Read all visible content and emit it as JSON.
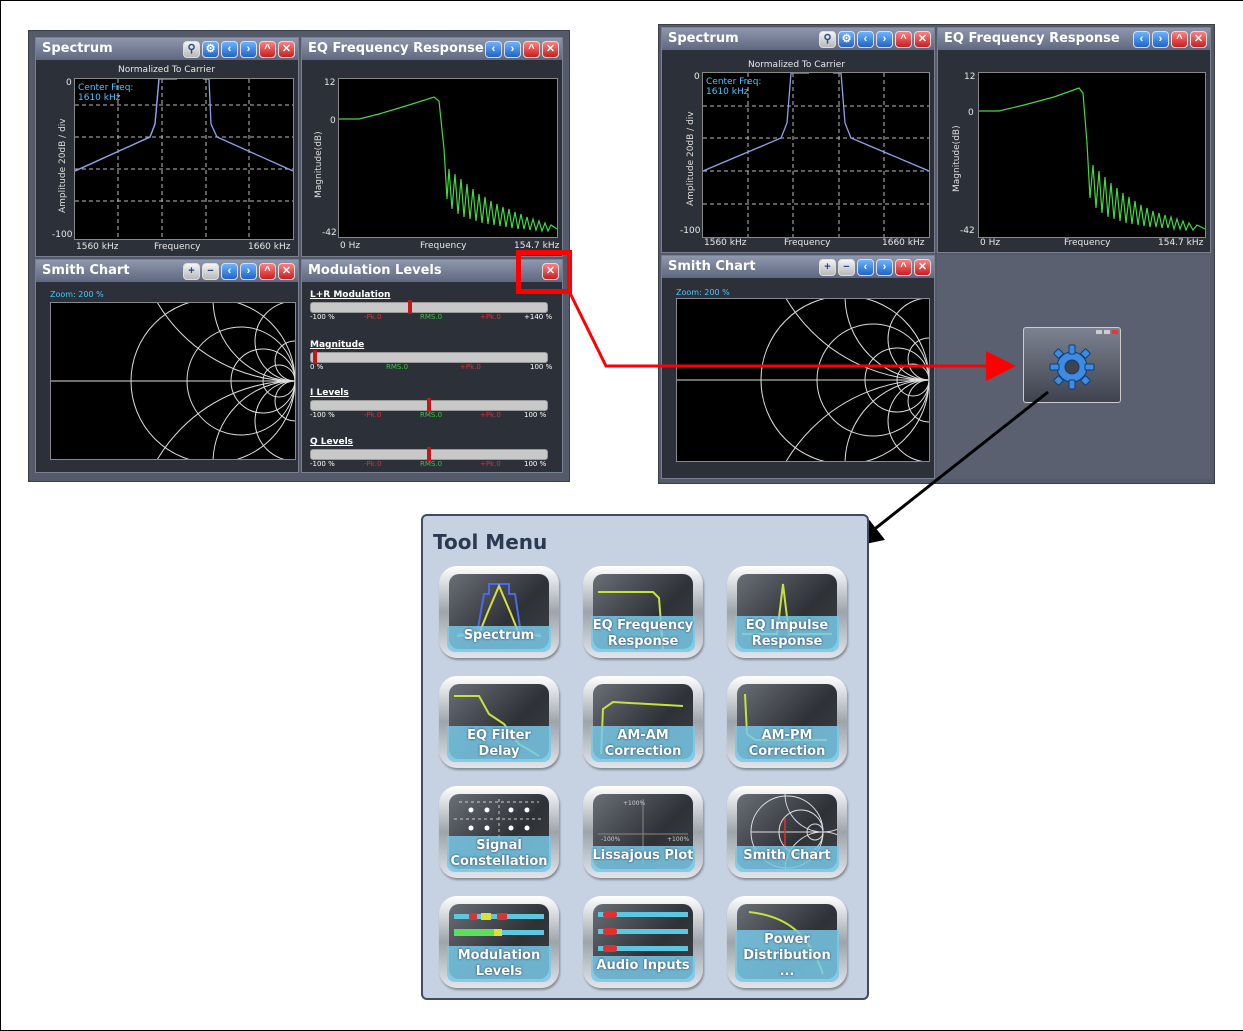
{
  "left_dashboard": {
    "spectrum": {
      "title": "Spectrum",
      "subtitle": "Normalized To Carrier",
      "center_freq_label": "Center Freq:",
      "center_freq_value": "1610 kHz",
      "y_top": "0",
      "y_bottom": "-100",
      "y_label": "Amplitude 20dB / div",
      "x_left": "1560 kHz",
      "x_mid": "Frequency",
      "x_right": "1660 kHz"
    },
    "eq": {
      "title": "EQ Frequency Response",
      "y_top": "12",
      "y_mid": "0",
      "y_bottom": "-42",
      "y_label": "Magnitude(dB)",
      "x_left": "0 Hz",
      "x_mid": "Frequency",
      "x_right": "154.7 kHz"
    },
    "smith": {
      "title": "Smith Chart",
      "zoom": "Zoom: 200 %"
    },
    "modulation": {
      "title": "Modulation Levels",
      "bars": [
        {
          "label": "L+R Modulation",
          "left": "-100 %",
          "mid1": "-Pk.0",
          "mid2": "RMS.0",
          "mid3": "+Pk.0",
          "right": "+140 %",
          "level": 0.42
        },
        {
          "label": "Magnitude",
          "left": "0 %",
          "mid1": "RMS.0",
          "mid2": "+Pk.0",
          "right": "100 %",
          "level": 0.01
        },
        {
          "label": "I Levels",
          "left": "-100 %",
          "mid1": "-Pk.0",
          "mid2": "RMS.0",
          "mid3": "+Pk.0",
          "right": "100 %",
          "level": 0.5
        },
        {
          "label": "Q Levels",
          "left": "-100 %",
          "mid1": "-Pk.0",
          "mid2": "RMS.0",
          "mid3": "+Pk.0",
          "right": "100 %",
          "level": 0.5
        }
      ]
    }
  },
  "right_dashboard": {
    "spectrum": {
      "title": "Spectrum",
      "subtitle": "Normalized To Carrier",
      "center_freq_label": "Center Freq:",
      "center_freq_value": "1610 kHz",
      "y_top": "0",
      "y_bottom": "-100",
      "y_label": "Amplitude 20dB / div",
      "x_left": "1560 kHz",
      "x_mid": "Frequency",
      "x_right": "1660 kHz"
    },
    "eq": {
      "title": "EQ Frequency Response",
      "y_top": "12",
      "y_mid": "0",
      "y_bottom": "-42",
      "y_label": "Magnitude(dB)",
      "x_left": "0 Hz",
      "x_mid": "Frequency",
      "x_right": "154.7 kHz"
    },
    "smith": {
      "title": "Smith Chart",
      "zoom": "Zoom: 200 %"
    },
    "empty_slot_icon": "gear-icon"
  },
  "tool_menu": {
    "title": "Tool Menu",
    "tiles": [
      {
        "label": "Spectrum",
        "icon": "spectrum-icon"
      },
      {
        "label": "EQ Frequency Response",
        "icon": "eq-frequency-icon"
      },
      {
        "label": "EQ Impulse Response",
        "icon": "eq-impulse-icon"
      },
      {
        "label": "EQ Filter Delay",
        "icon": "eq-filter-delay-icon"
      },
      {
        "label": "AM-AM Correction",
        "icon": "am-am-icon"
      },
      {
        "label": "AM-PM Correction",
        "icon": "am-pm-icon"
      },
      {
        "label": "Signal Constellation",
        "icon": "constellation-icon"
      },
      {
        "label": "Lissajous Plot",
        "icon": "lissajous-icon"
      },
      {
        "label": "Smith Chart",
        "icon": "smith-chart-icon"
      },
      {
        "label": "Modulation Levels",
        "icon": "modulation-levels-icon"
      },
      {
        "label": "Audio Inputs",
        "icon": "audio-inputs-icon"
      },
      {
        "label": "Power Distribution ...",
        "icon": "power-distribution-icon"
      }
    ],
    "lissajous_ticks": {
      "top": "+100%",
      "left": "-100%",
      "right": "+100%"
    }
  },
  "colors": {
    "highlight": "#ff0000",
    "arrow": "#000000",
    "trace_blue": "#7f8fd8",
    "trace_green": "#3fdc3f",
    "cyan_text": "#47c8ff"
  }
}
